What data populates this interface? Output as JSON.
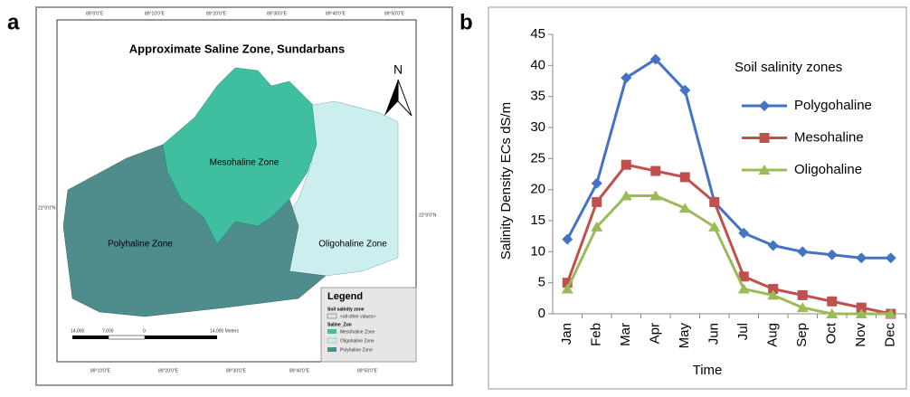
{
  "figure_a": {
    "panel_label": "a",
    "title": "Approximate Saline Zone, Sundarbans",
    "zones": {
      "mesohaline": "Mesohaline Zone",
      "polyhaline": "Polyhaline Zone",
      "oligohaline": "Oligohaline Zone"
    },
    "north_label": "N",
    "top_coords": [
      "89°0'0\"E",
      "89°10'0\"E",
      "89°20'0\"E",
      "89°30'0\"E",
      "89°40'0\"E",
      "89°50'0\"E"
    ],
    "bottom_coords": [
      "89°10'0\"E",
      "89°20'0\"E",
      "89°30'0\"E",
      "89°40'0\"E",
      "89°50'0\"E"
    ],
    "left_coord": "22°0'0\"N",
    "right_coord": "22°0'0\"N",
    "scale_labels": [
      "14,000",
      "7,000",
      "0",
      "14,000 Meters"
    ],
    "legend": {
      "title": "Legend",
      "group1": "Soil salinity zone",
      "other": "<all other values>",
      "group2": "Saline_Zon",
      "items": [
        "Mesohaline Zone",
        "Oligohaline Zone",
        "Polyhaline Zone"
      ]
    }
  },
  "chart_data": {
    "type": "line",
    "panel_label": "b",
    "y_label": "Salinity Density ECs dS/m",
    "x_label": "Time",
    "legend_title": "Soil salinity zones",
    "categories": [
      "Jan",
      "Feb",
      "Mar",
      "Apr",
      "May",
      "Jun",
      "Jul",
      "Aug",
      "Sep",
      "Oct",
      "Nov",
      "Dec"
    ],
    "series": [
      {
        "name": "Polygohaline",
        "color": "#4472c4",
        "marker": "diamond",
        "values": [
          12,
          21,
          38,
          41,
          36,
          18,
          13,
          11,
          10,
          9.5,
          9,
          9
        ]
      },
      {
        "name": "Mesohaline",
        "color": "#c0504d",
        "marker": "square",
        "values": [
          5,
          18,
          24,
          23,
          22,
          18,
          6,
          4,
          3,
          2,
          1,
          0
        ]
      },
      {
        "name": "Oligohaline",
        "color": "#9bbb59",
        "marker": "triangle",
        "values": [
          4,
          14,
          19,
          19,
          17,
          14,
          4,
          3,
          1,
          0,
          0,
          0
        ]
      }
    ],
    "ylim": [
      0,
      45
    ],
    "yticks": [
      0,
      5,
      10,
      15,
      20,
      25,
      30,
      35,
      40,
      45
    ],
    "grid": false
  }
}
